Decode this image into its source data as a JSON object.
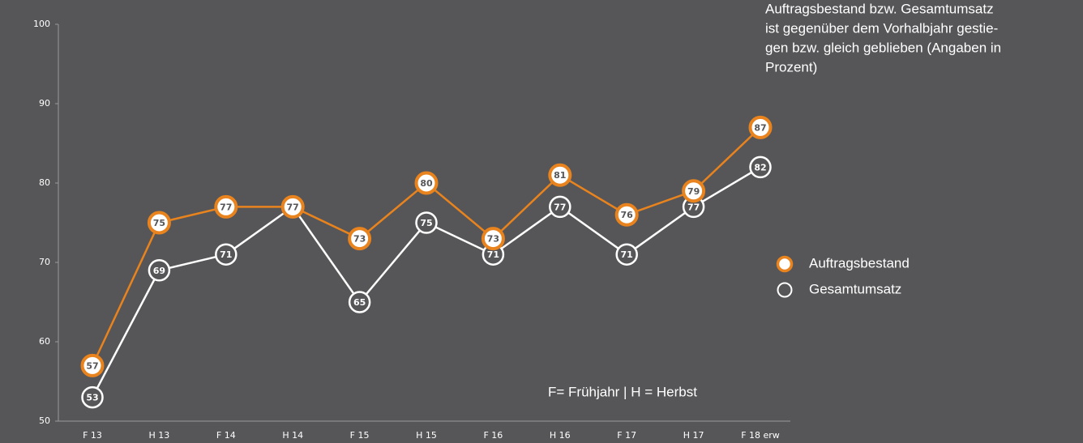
{
  "chart_data": {
    "type": "line",
    "annotation_lines": [
      "Auftragsbestand bzw. Gesamtumsatz",
      "ist gegenüber dem Vorhalbjahr gestie-",
      "gen bzw. gleich geblieben (Angaben in",
      "Prozent)"
    ],
    "note": "F= Frühjahr | H = Herbst",
    "categories": [
      "F 13",
      "H 13",
      "F 14",
      "H 14",
      "F 15",
      "H 15",
      "F 16",
      "H 16",
      "F 17",
      "H 17",
      "F 18 erw"
    ],
    "series": [
      {
        "name": "Auftragsbestand",
        "color": "#e8831e",
        "values": [
          57,
          75,
          77,
          77,
          73,
          80,
          73,
          81,
          76,
          79,
          87
        ]
      },
      {
        "name": "Gesamtumsatz",
        "color": "#ffffff",
        "values": [
          53,
          69,
          71,
          77,
          65,
          75,
          71,
          77,
          71,
          77,
          82
        ]
      }
    ],
    "ylim": [
      50,
      100
    ],
    "yticks": [
      50,
      60,
      70,
      80,
      90,
      100
    ]
  }
}
